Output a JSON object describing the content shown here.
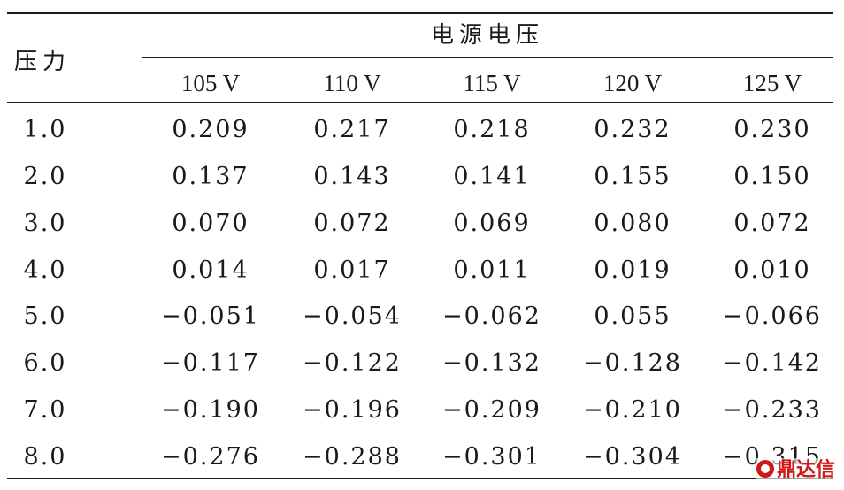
{
  "table": {
    "group_header": "电源电压",
    "row_header": "压力",
    "columns": [
      "105 V",
      "110 V",
      "115 V",
      "120 V",
      "125 V"
    ],
    "rows": [
      {
        "label": "1.0",
        "values": [
          "0.209",
          "0.217",
          "0.218",
          "0.232",
          "0.230"
        ]
      },
      {
        "label": "2.0",
        "values": [
          "0.137",
          "0.143",
          "0.141",
          "0.155",
          "0.150"
        ]
      },
      {
        "label": "3.0",
        "values": [
          "0.070",
          "0.072",
          "0.069",
          "0.080",
          "0.072"
        ]
      },
      {
        "label": "4.0",
        "values": [
          "0.014",
          "0.017",
          "0.011",
          "0.019",
          "0.010"
        ]
      },
      {
        "label": "5.0",
        "values": [
          "−0.051",
          "−0.054",
          "−0.062",
          "0.055",
          "−0.066"
        ]
      },
      {
        "label": "6.0",
        "values": [
          "−0.117",
          "−0.122",
          "−0.132",
          "−0.128",
          "−0.142"
        ]
      },
      {
        "label": "7.0",
        "values": [
          "−0.190",
          "−0.196",
          "−0.209",
          "−0.210",
          "−0.233"
        ]
      },
      {
        "label": "8.0",
        "values": [
          "−0.276",
          "−0.288",
          "−0.301",
          "−0.304",
          "−0.315"
        ]
      }
    ]
  },
  "watermark": {
    "text": "鼎达信",
    "icon": "logo-icon",
    "color": "#d01818"
  }
}
